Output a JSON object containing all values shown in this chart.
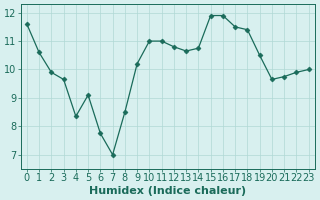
{
  "x_values": [
    0,
    1,
    2,
    3,
    4,
    5,
    6,
    7,
    8,
    9,
    10,
    11,
    12,
    13,
    14,
    15,
    16,
    17,
    18,
    19,
    20,
    21,
    22,
    23
  ],
  "y_values": [
    11.6,
    10.6,
    9.9,
    9.65,
    8.35,
    9.1,
    7.75,
    7.0,
    8.5,
    10.2,
    11.0,
    11.0,
    10.8,
    10.65,
    10.75,
    11.9,
    11.9,
    11.5,
    11.4,
    10.5,
    9.65,
    9.75,
    9.9,
    10.0
  ],
  "line_color": "#1a6b5a",
  "marker_color": "#1a6b5a",
  "bg_color": "#d8f0ef",
  "grid_color": "#b0d8d5",
  "axis_color": "#1a6b5a",
  "xlabel": "Humidex (Indice chaleur)",
  "xlabel_fontsize": 8,
  "tick_fontsize": 7,
  "ylim": [
    6.5,
    12.3
  ],
  "xlim": [
    -0.5,
    23.5
  ],
  "yticks": [
    7,
    8,
    9,
    10,
    11,
    12
  ],
  "xticks": [
    0,
    1,
    2,
    3,
    4,
    5,
    6,
    7,
    8,
    9,
    10,
    11,
    12,
    13,
    14,
    15,
    16,
    17,
    18,
    19,
    20,
    21,
    22,
    23
  ]
}
